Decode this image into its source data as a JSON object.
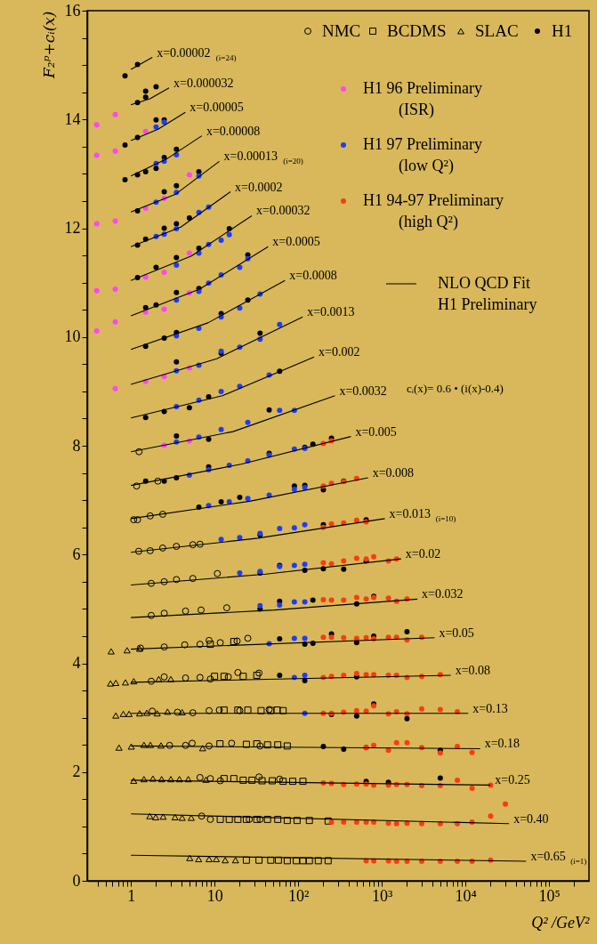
{
  "chart_data": {
    "type": "scatter",
    "xlabel": "Q² /GeV²",
    "ylabel": "F₂ᵖ+cᵢ(x)",
    "log": "x",
    "legend": "top right",
    "xlim": [
      0.3,
      300000
    ],
    "ylim": [
      0,
      16
    ],
    "xticks": [
      {
        "value": 0.4,
        "label": null
      },
      {
        "value": 0.5,
        "label": null
      },
      {
        "value": 0.6,
        "label": null
      },
      {
        "value": 0.7,
        "label": null
      },
      {
        "value": 0.8,
        "label": null
      },
      {
        "value": 0.9,
        "label": null
      },
      1,
      {
        "value": 2,
        "label": null
      },
      {
        "value": 3,
        "label": null
      },
      {
        "value": 4,
        "label": null
      },
      {
        "value": 5,
        "label": null
      },
      {
        "value": 6,
        "label": null
      },
      {
        "value": 7,
        "label": null
      },
      {
        "value": 8,
        "label": null
      },
      {
        "value": 9,
        "label": null
      },
      10,
      {
        "value": 20,
        "label": null
      },
      {
        "value": 30,
        "label": null
      },
      {
        "value": 40,
        "label": null
      },
      {
        "value": 50,
        "label": null
      },
      {
        "value": 60,
        "label": null
      },
      {
        "value": 70,
        "label": null
      },
      {
        "value": 80,
        "label": null
      },
      {
        "value": 90,
        "label": null
      },
      {
        "value": 100,
        "label": "10²"
      },
      {
        "value": 200,
        "label": null
      },
      {
        "value": 300,
        "label": null
      },
      {
        "value": 400,
        "label": null
      },
      {
        "value": 500,
        "label": null
      },
      {
        "value": 600,
        "label": null
      },
      {
        "value": 700,
        "label": null
      },
      {
        "value": 800,
        "label": null
      },
      {
        "value": 900,
        "label": null
      },
      {
        "value": 1000,
        "label": "10³"
      },
      {
        "value": 2000,
        "label": null
      },
      {
        "value": 3000,
        "label": null
      },
      {
        "value": 4000,
        "label": null
      },
      {
        "value": 5000,
        "label": null
      },
      {
        "value": 6000,
        "label": null
      },
      {
        "value": 7000,
        "label": null
      },
      {
        "value": 8000,
        "label": null
      },
      {
        "value": 9000,
        "label": null
      },
      {
        "value": 10000,
        "label": "10⁴"
      },
      {
        "value": 20000,
        "label": null
      },
      {
        "value": 30000,
        "label": null
      },
      {
        "value": 40000,
        "label": null
      },
      {
        "value": 50000,
        "label": null
      },
      {
        "value": 60000,
        "label": null
      },
      {
        "value": 70000,
        "label": null
      },
      {
        "value": 80000,
        "label": null
      },
      {
        "value": 90000,
        "label": null
      },
      {
        "value": 100000,
        "label": "10⁵"
      },
      {
        "value": 200000,
        "label": null
      }
    ],
    "yticks": [
      0,
      {
        "value": 0.5,
        "label": null
      },
      {
        "value": 1,
        "label": null
      },
      {
        "value": 1.5,
        "label": null
      },
      2,
      {
        "value": 2.5,
        "label": null
      },
      {
        "value": 3,
        "label": null
      },
      {
        "value": 3.5,
        "label": null
      },
      4,
      {
        "value": 4.5,
        "label": null
      },
      {
        "value": 5,
        "label": null
      },
      {
        "value": 5.5,
        "label": null
      },
      6,
      {
        "value": 6.5,
        "label": null
      },
      {
        "value": 7,
        "label": null
      },
      {
        "value": 7.5,
        "label": null
      },
      8,
      {
        "value": 8.5,
        "label": null
      },
      {
        "value": 9,
        "label": null
      },
      {
        "value": 9.5,
        "label": null
      },
      10,
      {
        "value": 10.5,
        "label": null
      },
      {
        "value": 11,
        "label": null
      },
      {
        "value": 11.5,
        "label": null
      },
      12,
      {
        "value": 12.5,
        "label": null
      },
      {
        "value": 13,
        "label": null
      },
      {
        "value": 13.5,
        "label": null
      },
      14,
      {
        "value": 14.5,
        "label": null
      },
      {
        "value": 15,
        "label": null
      },
      {
        "value": 15.5,
        "label": null
      },
      16
    ],
    "series": [
      {
        "name": "NMC",
        "marker": "circle",
        "color": "#000000",
        "x": [
          1.25,
          1.17,
          2.1,
          1.08,
          1.2,
          1.7,
          2.4,
          1.24,
          1.7,
          2.4,
          3.5,
          5.5,
          6.7,
          1.75,
          2.5,
          3.5,
          5.5,
          10.8,
          1.75,
          2.5,
          4.5,
          6.9,
          14,
          1.3,
          2.5,
          4.4,
          6.7,
          8.6,
          11.7,
          18.6,
          25,
          1.75,
          2.5,
          4.5,
          6.7,
          8.9,
          14.6,
          19,
          34,
          1.8,
          3.6,
          5.5,
          8.6,
          11.4,
          20,
          45,
          2.9,
          4.5,
          5.4,
          8.6,
          16,
          35,
          6.7,
          8.9,
          11.7,
          34,
          60,
          7,
          8.9,
          26,
          35
        ],
        "values": [
          7.89,
          7.26,
          7.35,
          6.64,
          6.64,
          6.71,
          6.74,
          6.06,
          6.07,
          6.12,
          6.15,
          6.18,
          6.19,
          5.47,
          5.5,
          5.54,
          5.56,
          5.65,
          4.88,
          4.92,
          4.96,
          4.98,
          5.02,
          4.28,
          4.3,
          4.34,
          4.35,
          4.42,
          4.38,
          4.41,
          4.46,
          3.67,
          3.75,
          3.73,
          3.74,
          3.71,
          3.75,
          3.83,
          3.82,
          3.12,
          3.1,
          3.09,
          3.13,
          3.14,
          3.13,
          3.15,
          2.49,
          2.49,
          2.53,
          2.48,
          2.53,
          2.48,
          1.9,
          1.88,
          1.84,
          1.91,
          1.87,
          1.19,
          1.13,
          1.13,
          1.13
        ]
      },
      {
        "name": "BCDMS",
        "marker": "square",
        "color": "#000000",
        "x": [
          8.9,
          17,
          10,
          13,
          22,
          32,
          13,
          19,
          25,
          36,
          47,
          56,
          66,
          11.6,
          24,
          32,
          43,
          57,
          74,
          13,
          17,
          22,
          28,
          37,
          49,
          66,
          86,
          114,
          11.7,
          15,
          19,
          24,
          32,
          43,
          57,
          74,
          97,
          136,
          228,
          24,
          34,
          47,
          58,
          74,
          95,
          114,
          136,
          174,
          228
        ],
        "values": [
          4.35,
          4.4,
          3.76,
          3.76,
          3.76,
          3.78,
          3.14,
          3.14,
          3.14,
          3.13,
          3.13,
          3.14,
          3.13,
          2.52,
          2.51,
          2.52,
          2.5,
          2.5,
          2.48,
          1.88,
          1.88,
          1.85,
          1.85,
          1.84,
          1.84,
          1.83,
          1.83,
          1.83,
          1.13,
          1.13,
          1.13,
          1.13,
          1.13,
          1.13,
          1.13,
          1.11,
          1.11,
          1.11,
          1.1,
          0.38,
          0.38,
          0.38,
          0.38,
          0.37,
          0.37,
          0.37,
          0.37,
          0.37,
          0.37
        ]
      },
      {
        "name": "SLAC",
        "marker": "triangle",
        "color": "#000000",
        "x": [
          0.58,
          0.9,
          1.27,
          0.57,
          0.66,
          0.86,
          1.08,
          2.15,
          3,
          0.66,
          0.81,
          0.95,
          1.27,
          1.55,
          2.06,
          2.74,
          4.1,
          0.72,
          1.01,
          1.43,
          1.71,
          2.29,
          7.2,
          1.08,
          1.43,
          1.83,
          2.33,
          3,
          3.8,
          4.85,
          7.9,
          1.68,
          1.98,
          2.43,
          3.37,
          4.1,
          5.26,
          5.05,
          6.45,
          8.6,
          10.5,
          13.4,
          17.8
        ],
        "values": [
          4.22,
          4.24,
          4.27,
          3.63,
          3.64,
          3.65,
          3.67,
          3.71,
          3.71,
          3.04,
          3.07,
          3.07,
          3.08,
          3.09,
          3.08,
          3.11,
          3.1,
          2.45,
          2.47,
          2.5,
          2.5,
          2.49,
          2.44,
          1.84,
          1.87,
          1.88,
          1.87,
          1.87,
          1.87,
          1.87,
          1.86,
          1.19,
          1.17,
          1.18,
          1.17,
          1.16,
          1.16,
          0.42,
          0.4,
          0.4,
          0.4,
          0.38,
          0.38
        ]
      },
      {
        "name": "H1",
        "marker": "circle",
        "color": "#000000",
        "x": [
          1.2,
          0.85,
          1.2,
          1.5,
          1.5,
          2,
          0.85,
          1.2,
          2,
          2.5,
          3.5,
          0.85,
          1.2,
          1.5,
          2,
          2.5,
          6.5,
          1.2,
          2.5,
          3.5,
          5,
          1.2,
          1.5,
          2.5,
          3.5,
          15,
          1.2,
          2,
          3.5,
          6.5,
          25,
          1.5,
          2,
          3.5,
          6.5,
          12,
          25,
          1.5,
          2.5,
          3.5,
          12,
          35,
          3.5,
          60,
          1.5,
          2.5,
          5,
          8.5,
          45,
          3.5,
          8.5,
          120,
          150,
          250,
          1.5,
          2.5,
          3.5,
          8.5,
          45,
          90,
          120,
          200,
          350,
          6.5,
          12,
          20,
          35,
          200,
          650,
          35,
          60,
          120,
          200,
          350,
          650,
          35,
          60,
          150,
          500,
          800,
          60,
          120,
          150,
          250,
          500,
          800,
          2000,
          60,
          120,
          500,
          250,
          500,
          800,
          2000,
          200,
          350,
          650,
          5000,
          650,
          1200,
          5000
        ],
        "values": [
          15.01,
          14.8,
          14.31,
          14.52,
          14.41,
          14.6,
          13.53,
          13.67,
          13.99,
          13.99,
          13.45,
          12.89,
          12.98,
          13.04,
          13.1,
          13.3,
          13.04,
          12.32,
          12.67,
          12.78,
          12.19,
          11.69,
          11.8,
          12,
          12.08,
          11.99,
          11.09,
          11.28,
          11.46,
          11.63,
          11.51,
          10.54,
          10.59,
          10.82,
          10.89,
          10.43,
          10.68,
          9.83,
          9.98,
          10.08,
          9.7,
          10.07,
          9.54,
          9.37,
          8.52,
          8.63,
          8.7,
          8.9,
          8.66,
          8.18,
          8.12,
          7.97,
          8.03,
          8.14,
          7.35,
          7.35,
          7.41,
          7.61,
          7.86,
          7.26,
          7.27,
          7.19,
          7.35,
          6.87,
          6.97,
          7.05,
          6.36,
          6.55,
          6.64,
          5.66,
          5.8,
          5.71,
          5.74,
          5.73,
          5.88,
          5,
          5.14,
          5.16,
          5.09,
          5.23,
          4.45,
          4.35,
          4.37,
          4.54,
          4.38,
          4.5,
          4.58,
          3.78,
          3.68,
          3.75,
          3.06,
          3.03,
          3.25,
          2.98,
          2.47,
          2.42,
          2.45,
          2.4,
          1.83,
          1.81,
          1.89
        ]
      },
      {
        "name": "H1 96 Preliminary\n(ISR)",
        "marker": "circle",
        "color": "#ff44ff",
        "x": [
          0.39,
          0.65,
          0.39,
          0.65,
          0.39,
          0.65,
          0.39,
          0.65,
          0.39,
          0.65,
          0.65,
          1.5,
          2.5,
          1.5,
          5,
          5,
          1.5,
          2.5,
          5,
          1.5,
          2.5,
          1.5,
          2.5,
          5,
          2.5,
          5
        ],
        "values": [
          13.9,
          14.09,
          13.34,
          13.42,
          12.08,
          12.13,
          10.85,
          10.88,
          10.11,
          10.28,
          9.05,
          13.78,
          12.55,
          12.37,
          12.98,
          11.54,
          11.1,
          11.19,
          10.81,
          10.46,
          10.51,
          9.18,
          9.27,
          9.43,
          8.01,
          8.09
        ]
      },
      {
        "name": "H1 97 Preliminary\n(low Q²)",
        "marker": "circle",
        "color": "#1e3cff",
        "x": [
          2,
          2.5,
          2,
          2.5,
          3.5,
          6.5,
          2,
          3.5,
          8.5,
          2,
          2.5,
          3.5,
          6.5,
          12,
          15,
          3.5,
          6.5,
          8.5,
          12,
          20,
          25,
          3.5,
          6.5,
          8.5,
          12,
          20,
          35,
          3.5,
          6.5,
          12,
          20,
          35,
          60,
          3.5,
          6.5,
          12,
          20,
          45,
          3.5,
          6.5,
          12,
          25,
          60,
          90,
          3.5,
          6.5,
          5,
          8.5,
          15,
          25,
          45,
          90,
          120,
          8.5,
          15,
          25,
          45,
          90,
          120,
          12,
          20,
          35,
          60,
          90,
          120,
          20,
          35,
          60,
          90,
          120,
          35,
          60,
          90,
          120,
          45,
          90,
          120,
          90,
          120,
          120
        ],
        "values": [
          13.86,
          13.95,
          13.19,
          13.23,
          13.35,
          12.96,
          12.48,
          12.66,
          12.39,
          11.85,
          11.89,
          11.99,
          12.29,
          11.78,
          11.88,
          11.32,
          11.54,
          11.7,
          11.14,
          11.28,
          11.44,
          10.68,
          10.84,
          10.99,
          10.37,
          10.53,
          10.79,
          10.02,
          10.16,
          9.74,
          9.81,
          9.96,
          10.23,
          9.38,
          9.48,
          9,
          9.09,
          9.3,
          8.72,
          8.84,
          8.3,
          8.43,
          8.65,
          8.65,
          8.07,
          8.16,
          7.46,
          7.56,
          7.64,
          7.72,
          7.83,
          7.94,
          7.95,
          6.9,
          6.97,
          7.03,
          7.09,
          7.2,
          7.23,
          6.28,
          6.31,
          6.39,
          6.48,
          6.49,
          6.55,
          5.66,
          5.69,
          5.78,
          5.8,
          5.82,
          5.06,
          5.07,
          5.13,
          5.13,
          4.36,
          4.46,
          4.46,
          3.74,
          3.78,
          3.08
        ]
      },
      {
        "name": "H1 94-97 Preliminary\n(high Q²)",
        "marker": "circle",
        "color": "#ff3a10",
        "x": [
          200,
          250,
          200,
          250,
          350,
          500,
          200,
          250,
          350,
          500,
          650,
          200,
          250,
          350,
          500,
          650,
          800,
          1200,
          1500,
          200,
          250,
          350,
          500,
          650,
          800,
          1200,
          1500,
          2000,
          200,
          250,
          350,
          500,
          650,
          800,
          1200,
          1500,
          2000,
          3000,
          200,
          250,
          350,
          500,
          650,
          800,
          1200,
          1500,
          2000,
          3000,
          5000,
          200,
          250,
          350,
          500,
          650,
          800,
          1200,
          1500,
          2000,
          3000,
          5000,
          8000,
          650,
          800,
          1200,
          1500,
          2000,
          3000,
          5000,
          8000,
          12000,
          200,
          250,
          350,
          500,
          650,
          800,
          1200,
          1500,
          2000,
          3000,
          5000,
          8000,
          12000,
          20000,
          250,
          350,
          500,
          650,
          800,
          1200,
          1500,
          2000,
          3000,
          5000,
          8000,
          12000,
          20000,
          30000,
          650,
          800,
          1200,
          1500,
          2000,
          3000,
          5000,
          8000,
          12000,
          20000
        ],
        "values": [
          8.04,
          8.09,
          7.26,
          7.31,
          7.34,
          7.4,
          6.5,
          6.56,
          6.58,
          6.63,
          6.6,
          5.85,
          5.83,
          5.88,
          5.93,
          5.92,
          5.96,
          5.88,
          5.92,
          5.17,
          5.16,
          5.16,
          5.21,
          5.18,
          5.21,
          5.2,
          5.14,
          5.18,
          4.48,
          4.48,
          4.47,
          4.46,
          4.47,
          4.45,
          4.48,
          4.48,
          4.43,
          4.48,
          3.74,
          3.76,
          3.78,
          3.81,
          3.79,
          3.79,
          3.78,
          3.78,
          3.74,
          3.76,
          3.79,
          3.08,
          3.08,
          3.1,
          3.13,
          3.12,
          3.22,
          3.07,
          3.11,
          3.07,
          3.16,
          3.15,
          3.11,
          2.45,
          2.49,
          2.4,
          2.54,
          2.54,
          2.45,
          2.35,
          2.47,
          2.36,
          1.8,
          1.79,
          1.77,
          1.78,
          1.78,
          1.76,
          1.76,
          1.77,
          1.77,
          1.75,
          1.75,
          1.85,
          1.7,
          1.76,
          1.08,
          1.08,
          1.08,
          1.08,
          1.08,
          1.06,
          1.05,
          1.06,
          1.05,
          1.05,
          1.05,
          1.08,
          1.19,
          1.41,
          0.37,
          0.37,
          0.37,
          0.36,
          0.36,
          0.36,
          0.36,
          0.36,
          0.36,
          0.38
        ]
      },
      {
        "name": "NLO QCD Fit\nH1 Preliminary",
        "type": "line",
        "color": "#000000",
        "x": [
          1,
          1.8
        ],
        "values": [
          14.92,
          15.14
        ]
      },
      {
        "type": "line",
        "color": "#000000",
        "x": [
          1,
          1.69,
          2.86
        ],
        "values": [
          14.27,
          14.38,
          14.58
        ]
      },
      {
        "type": "line",
        "color": "#000000",
        "x": [
          1,
          2.11,
          4.47
        ],
        "values": [
          13.61,
          13.82,
          14.13
        ]
      },
      {
        "type": "line",
        "color": "#000000",
        "x": [
          1,
          2.66,
          7.05
        ],
        "values": [
          12.96,
          13.27,
          13.7
        ]
      },
      {
        "type": "line",
        "color": "#000000",
        "x": [
          1,
          3.38,
          11.4
        ],
        "values": [
          12.3,
          12.62,
          13.23
        ]
      },
      {
        "type": "line",
        "color": "#000000",
        "x": [
          1,
          3.94,
          15.5
        ],
        "values": [
          11.66,
          12.02,
          12.67
        ]
      },
      {
        "type": "line",
        "color": "#000000",
        "x": [
          1,
          5.28,
          27.9
        ],
        "values": [
          11.04,
          11.49,
          12.23
        ]
      },
      {
        "type": "line",
        "color": "#000000",
        "x": [
          1,
          6.61,
          43.7
        ],
        "values": [
          10.39,
          10.88,
          11.66
        ]
      },
      {
        "type": "line",
        "color": "#000000",
        "x": [
          1,
          8.34,
          69.5
        ],
        "values": [
          9.77,
          10.26,
          11.04
        ]
      },
      {
        "type": "line",
        "color": "#000000",
        "x": [
          1,
          10.6,
          113
        ],
        "values": [
          9.13,
          9.6,
          10.37
        ]
      },
      {
        "type": "line",
        "color": "#000000",
        "x": [
          1,
          12.4,
          155
        ],
        "values": [
          8.51,
          8.92,
          9.63
        ]
      },
      {
        "type": "line",
        "color": "#000000",
        "x": [
          1,
          16.6,
          275
        ],
        "values": [
          7.89,
          8.26,
          8.92
        ]
      },
      {
        "type": "line",
        "color": "#000000",
        "x": [
          1,
          20.7,
          427
        ],
        "values": [
          7.27,
          7.66,
          8.17
        ]
      },
      {
        "type": "line",
        "color": "#000000",
        "x": [
          1,
          26.2,
          684
        ],
        "values": [
          6.66,
          6.98,
          7.41
        ]
      },
      {
        "type": "line",
        "color": "#000000",
        "x": [
          1,
          33,
          1087
        ],
        "values": [
          6.04,
          6.3,
          6.66
        ]
      },
      {
        "type": "line",
        "color": "#000000",
        "x": [
          1,
          41,
          1700
        ],
        "values": [
          5.44,
          5.64,
          5.92
        ]
      },
      {
        "type": "line",
        "color": "#000000",
        "x": [
          1,
          52,
          2660
        ],
        "values": [
          4.84,
          4.98,
          5.18
        ]
      },
      {
        "type": "line",
        "color": "#000000",
        "x": [
          1,
          4270
        ],
        "values": [
          4.26,
          4.47
        ]
      },
      {
        "type": "line",
        "color": "#000000",
        "x": [
          1,
          6680
        ],
        "values": [
          3.65,
          3.78
        ]
      },
      {
        "type": "line",
        "color": "#000000",
        "x": [
          1,
          10800
        ],
        "values": [
          3.08,
          3.08
        ]
      },
      {
        "type": "line",
        "color": "#000000",
        "x": [
          1,
          15000
        ],
        "values": [
          2.48,
          2.43
        ]
      },
      {
        "type": "line",
        "color": "#000000",
        "x": [
          1,
          19900
        ],
        "values": [
          1.85,
          1.76
        ]
      },
      {
        "type": "line",
        "color": "#000000",
        "x": [
          1,
          33200
        ],
        "values": [
          1.23,
          1.05
        ]
      },
      {
        "type": "line",
        "color": "#000000",
        "x": [
          1,
          53200
        ],
        "values": [
          0.47,
          0.36
        ]
      }
    ],
    "annotations": [
      {
        "text": "x=0.00002$_{(i=24)}$",
        "x": 1.8,
        "y": 15.14
      },
      {
        "text": "x=0.000032",
        "x": 2.86,
        "y": 14.58
      },
      {
        "text": "x=0.00005",
        "x": 4.47,
        "y": 14.13
      },
      {
        "text": "x=0.00008",
        "x": 7.05,
        "y": 13.7
      },
      {
        "text": "x=0.00013$_{(i=20)}$",
        "x": 11.4,
        "y": 13.23
      },
      {
        "text": "x=0.0002",
        "x": 15.5,
        "y": 12.67
      },
      {
        "text": "x=0.00032",
        "x": 27.9,
        "y": 12.23
      },
      {
        "text": "x=0.0005",
        "x": 43.7,
        "y": 11.66
      },
      {
        "text": "x=0.0008",
        "x": 69.5,
        "y": 11.04
      },
      {
        "text": "x=0.0013",
        "x": 113,
        "y": 10.37
      },
      {
        "text": "x=0.002",
        "x": 155,
        "y": 9.63
      },
      {
        "text": "x=0.0032",
        "x": 275,
        "y": 8.92
      },
      {
        "text": "x=0.005",
        "x": 427,
        "y": 8.17
      },
      {
        "text": "x=0.008",
        "x": 684,
        "y": 7.41
      },
      {
        "text": "x=0.013$_{(i=10)}$",
        "x": 1087,
        "y": 6.66
      },
      {
        "text": "x=0.02",
        "x": 1700,
        "y": 5.92
      },
      {
        "text": "x=0.032",
        "x": 2660,
        "y": 5.18
      },
      {
        "text": "x=0.05",
        "x": 4270,
        "y": 4.47
      },
      {
        "text": "x=0.08",
        "x": 6680,
        "y": 3.78
      },
      {
        "text": "x=0.13",
        "x": 10800,
        "y": 3.08
      },
      {
        "text": "x=0.18",
        "x": 15000,
        "y": 2.43
      },
      {
        "text": "x=0.25",
        "x": 19900,
        "y": 1.76
      },
      {
        "text": "x=0.40",
        "x": 33200,
        "y": 1.05
      },
      {
        "text": "x=0.65$_{(i=1)}$",
        "x": 53200,
        "y": 0.36
      },
      "cᵢ(x)= 0.6 • (i(x)-0.4)"
    ]
  }
}
